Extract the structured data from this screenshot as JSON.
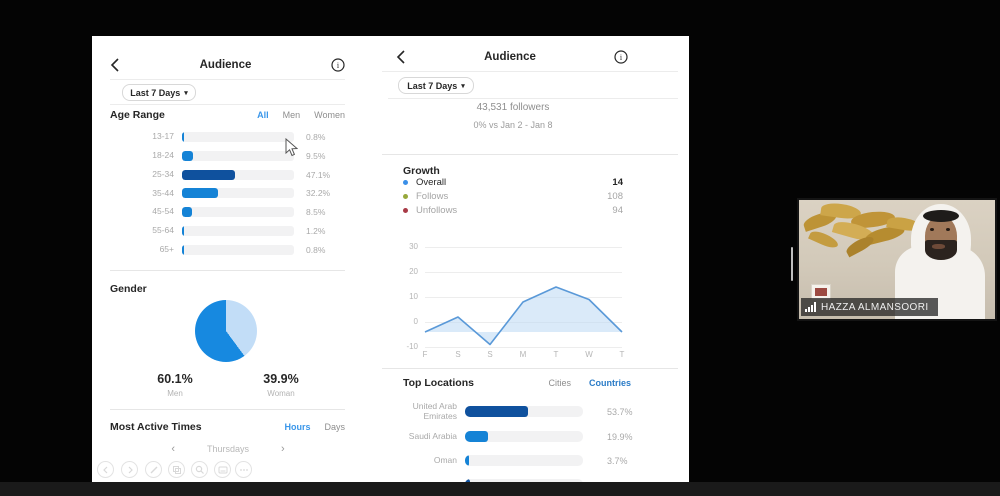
{
  "left_panel": {
    "title": "Audience",
    "filter_label": "Last 7 Days",
    "age_range": {
      "heading": "Age Range",
      "tabs": [
        {
          "label": "All",
          "active": true
        },
        {
          "label": "Men",
          "active": false
        },
        {
          "label": "Women",
          "active": false
        }
      ],
      "rows": [
        {
          "label": "13-17",
          "pct": 0.8,
          "text": "0.8%"
        },
        {
          "label": "18-24",
          "pct": 9.5,
          "text": "9.5%"
        },
        {
          "label": "25-34",
          "pct": 47.1,
          "text": "47.1%",
          "highlight": true
        },
        {
          "label": "35-44",
          "pct": 32.2,
          "text": "32.2%"
        },
        {
          "label": "45-54",
          "pct": 8.5,
          "text": "8.5%"
        },
        {
          "label": "55-64",
          "pct": 1.2,
          "text": "1.2%"
        },
        {
          "label": "65+",
          "pct": 0.8,
          "text": "0.8%"
        }
      ]
    },
    "gender": {
      "heading": "Gender",
      "slices": [
        {
          "label": "Men",
          "text": "60.1%",
          "pct": 60.1,
          "color": "#1789e0"
        },
        {
          "label": "Woman",
          "text": "39.9%",
          "pct": 39.9,
          "color": "#c2ddf7"
        }
      ]
    },
    "most_active_times": {
      "heading": "Most Active Times",
      "tabs": [
        {
          "label": "Hours",
          "active": true
        },
        {
          "label": "Days",
          "active": false
        }
      ],
      "selected_day": "Thursdays"
    }
  },
  "right_panel": {
    "title": "Audience",
    "filter_label": "Last 7 Days",
    "followers": "43,531 followers",
    "comparison": "0% vs Jan 2 - Jan 8",
    "growth": {
      "heading": "Growth",
      "legend": [
        {
          "label": "Overall",
          "value": "14",
          "color": "#3a8fe8",
          "emphasis": true
        },
        {
          "label": "Follows",
          "value": "108",
          "color": "#97a83c",
          "emphasis": false
        },
        {
          "label": "Unfollows",
          "value": "94",
          "color": "#a83a46",
          "emphasis": false
        }
      ]
    },
    "top_locations": {
      "heading": "Top Locations",
      "tabs": [
        {
          "label": "Cities",
          "active": false
        },
        {
          "label": "Countries",
          "active": true
        }
      ],
      "rows": [
        {
          "label_lines": [
            "United Arab",
            "Emirates"
          ],
          "pct": 53.7,
          "text": "53.7%",
          "highlight": true
        },
        {
          "label_lines": [
            "Saudi Arabia"
          ],
          "pct": 19.9,
          "text": "19.9%"
        },
        {
          "label_lines": [
            "Oman"
          ],
          "pct": 3.7,
          "text": "3.7%"
        },
        {
          "label_lines": [
            ""
          ],
          "pct": 4.0,
          "text": "",
          "partial": true
        }
      ]
    }
  },
  "chart_data": {
    "type": "area",
    "title": "Growth (Overall)",
    "x": [
      "F",
      "S",
      "S",
      "M",
      "T",
      "W",
      "T"
    ],
    "series": [
      {
        "name": "Overall",
        "values": [
          -4,
          2,
          -9,
          8,
          14,
          9,
          -4
        ]
      }
    ],
    "ylim": [
      -10,
      30
    ],
    "yticks": [
      30,
      20,
      10,
      0,
      -10
    ],
    "grid": true,
    "legend_position": "above",
    "line_color": "#5a99d8",
    "fill_color": "#bcd9f4"
  },
  "annotation_toolbar": {
    "icons": [
      "chevron-left",
      "chevron-right",
      "pencil",
      "copy",
      "magnifier",
      "board",
      "more"
    ]
  },
  "webcam": {
    "participant_name": "HAZZA ALMANSOORI"
  },
  "colors": {
    "accent_blue": "#3b97ea",
    "countries_blue": "#2b7cc7",
    "bar_blue": "#1583d6",
    "bar_dark_blue": "#0f519e",
    "track_gray": "#f2f2f3",
    "text_gray": "#a5a5a5"
  }
}
